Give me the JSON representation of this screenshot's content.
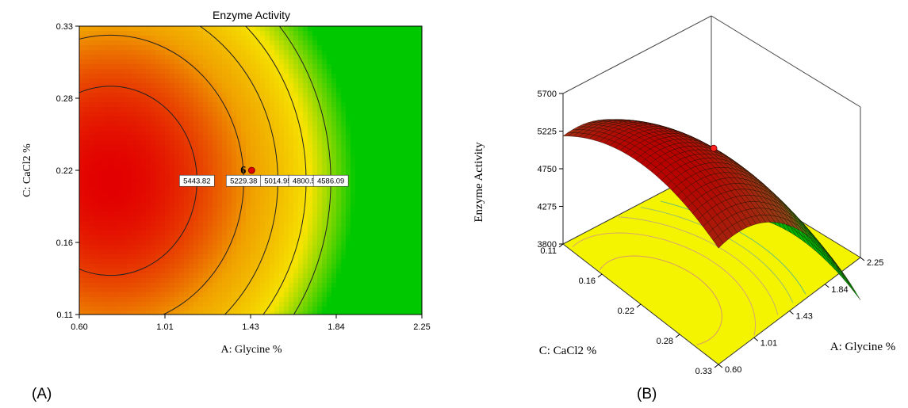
{
  "panel_labels": {
    "a": "(A)",
    "b": "(B)"
  },
  "chart_data": [
    {
      "type": "heatmap",
      "subtype": "contour",
      "title": "Enzyme Activity",
      "xlabel": "A: Glycine %",
      "ylabel": "C: CaCl2 %",
      "x_ticks": [
        "0.60",
        "1.01",
        "1.43",
        "1.84",
        "2.25"
      ],
      "y_ticks": [
        "0.11",
        "0.16",
        "0.22",
        "0.28",
        "0.33"
      ],
      "xlim": [
        0.6,
        2.25
      ],
      "ylim": [
        0.11,
        0.33
      ],
      "color_scale": [
        "#e20000",
        "#f0a000",
        "#f6e400",
        "#00c800"
      ],
      "contours": [
        {
          "label": "5443.82",
          "value": 5443.82
        },
        {
          "label": "5229.38",
          "value": 5229.38
        },
        {
          "label": "5014.95",
          "value": 5014.95
        },
        {
          "label": "4800.52",
          "value": 4800.52
        },
        {
          "label": "4586.09",
          "value": 4586.09
        }
      ],
      "design_point": {
        "label": "6",
        "x": 1.43,
        "y": 0.22,
        "color": "#e00000"
      }
    },
    {
      "type": "surface",
      "zlabel": "Enzyme Activity",
      "xlabel": "A: Glycine %",
      "ylabel": "C: CaCl2 %",
      "x_ticks": [
        "0.60",
        "1.01",
        "1.43",
        "1.84",
        "2.25"
      ],
      "y_ticks": [
        "0.11",
        "0.16",
        "0.22",
        "0.28",
        "0.33"
      ],
      "z_ticks": [
        "3800",
        "4275",
        "4750",
        "5225",
        "5700"
      ],
      "xlim": [
        0.6,
        2.25
      ],
      "ylim": [
        0.11,
        0.33
      ],
      "zlim": [
        3800,
        5700
      ],
      "floor_color": "#f4f400",
      "surface_colors": [
        "#cc0000",
        "#8a2a10",
        "#00c000"
      ],
      "design_point": {
        "x": 1.43,
        "y": 0.22,
        "color": "#ff2020"
      }
    }
  ]
}
